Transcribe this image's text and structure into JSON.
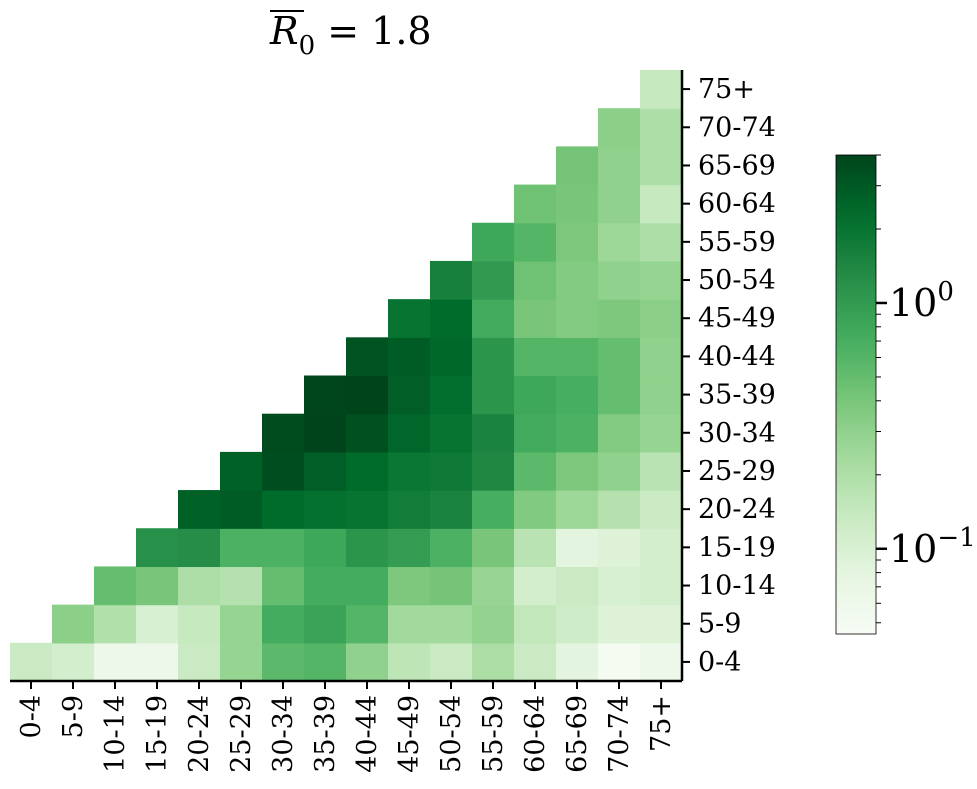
{
  "chart_data": {
    "type": "heatmap",
    "title": {
      "symbol": "R",
      "subscript": "0",
      "rest": " = 1.8"
    },
    "categories": [
      "0-4",
      "5-9",
      "10-14",
      "15-19",
      "20-24",
      "25-29",
      "30-34",
      "35-39",
      "40-44",
      "45-49",
      "50-54",
      "55-59",
      "60-64",
      "65-69",
      "70-74",
      "75+"
    ],
    "triangle": "lower-left (row index <= column index)",
    "colormap": "Greens",
    "color_scale": "log",
    "colorbar": {
      "ticks": [
        {
          "label_base": "10",
          "label_exp": "0",
          "value": 1.0
        },
        {
          "label_base": "10",
          "label_exp": "−1",
          "value": 0.1
        }
      ],
      "range": [
        0.045,
        4.0
      ]
    },
    "matrix_rows_bottom_to_top": [
      [
        0.13,
        0.11,
        0.06,
        0.06,
        0.13,
        0.28,
        0.55,
        0.6,
        0.3,
        0.16,
        0.13,
        0.21,
        0.13,
        0.08,
        0.05,
        0.06
      ],
      [
        null,
        0.32,
        0.19,
        0.1,
        0.14,
        0.28,
        0.72,
        0.85,
        0.6,
        0.24,
        0.24,
        0.29,
        0.15,
        0.12,
        0.09,
        0.09
      ],
      [
        null,
        null,
        0.5,
        0.4,
        0.2,
        0.18,
        0.5,
        0.72,
        0.72,
        0.38,
        0.42,
        0.27,
        0.11,
        0.13,
        0.1,
        0.11
      ],
      [
        null,
        null,
        null,
        1.2,
        1.25,
        0.65,
        0.65,
        0.8,
        1.1,
        0.95,
        0.65,
        0.4,
        0.17,
        0.08,
        0.09,
        0.11
      ],
      [
        null,
        null,
        null,
        null,
        2.7,
        2.9,
        2.3,
        2.1,
        2.0,
        1.7,
        1.5,
        0.7,
        0.36,
        0.25,
        0.18,
        0.13
      ],
      [
        null,
        null,
        null,
        null,
        null,
        2.7,
        3.5,
        2.8,
        2.3,
        1.9,
        1.8,
        1.4,
        0.55,
        0.38,
        0.3,
        0.17
      ],
      [
        null,
        null,
        null,
        null,
        null,
        null,
        3.6,
        4.2,
        3.4,
        2.5,
        2.0,
        1.5,
        0.75,
        0.65,
        0.35,
        0.28
      ],
      [
        null,
        null,
        null,
        null,
        null,
        null,
        null,
        3.9,
        4.0,
        2.8,
        2.2,
        1.1,
        0.8,
        0.7,
        0.5,
        0.3
      ],
      [
        null,
        null,
        null,
        null,
        null,
        null,
        null,
        null,
        3.2,
        2.9,
        2.4,
        1.1,
        0.6,
        0.6,
        0.5,
        0.3
      ],
      [
        null,
        null,
        null,
        null,
        null,
        null,
        null,
        null,
        null,
        2.0,
        2.3,
        0.75,
        0.4,
        0.35,
        0.38,
        0.32
      ],
      [
        null,
        null,
        null,
        null,
        null,
        null,
        null,
        null,
        null,
        null,
        1.6,
        1.0,
        0.45,
        0.35,
        0.3,
        0.28
      ],
      [
        null,
        null,
        null,
        null,
        null,
        null,
        null,
        null,
        null,
        null,
        null,
        0.8,
        0.6,
        0.38,
        0.25,
        0.2
      ],
      [
        null,
        null,
        null,
        null,
        null,
        null,
        null,
        null,
        null,
        null,
        null,
        null,
        0.45,
        0.4,
        0.3,
        0.14
      ],
      [
        null,
        null,
        null,
        null,
        null,
        null,
        null,
        null,
        null,
        null,
        null,
        null,
        null,
        0.42,
        0.3,
        0.2
      ],
      [
        null,
        null,
        null,
        null,
        null,
        null,
        null,
        null,
        null,
        null,
        null,
        null,
        null,
        null,
        0.32,
        0.2
      ],
      [
        null,
        null,
        null,
        null,
        null,
        null,
        null,
        null,
        null,
        null,
        null,
        null,
        null,
        null,
        null,
        0.14
      ]
    ]
  }
}
